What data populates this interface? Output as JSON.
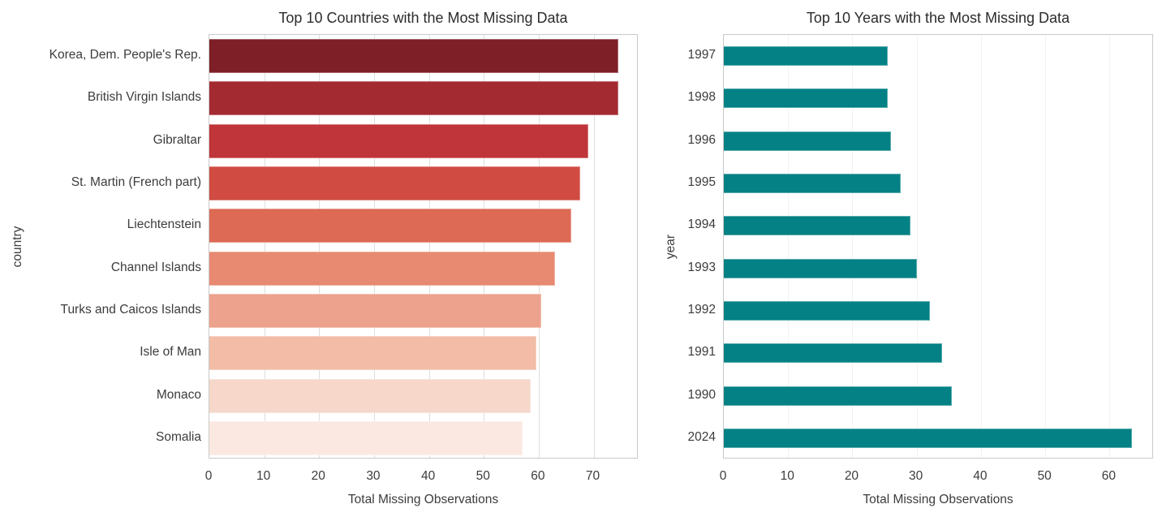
{
  "figure": {
    "background": "#ffffff",
    "text_color": "#3c3c3c",
    "title_color": "#2b2b2b"
  },
  "chart_data": [
    {
      "type": "bar",
      "orientation": "horizontal",
      "title": "Top 10 Countries with the Most Missing Data",
      "xlabel": "Total Missing Observations",
      "ylabel": "country",
      "categories": [
        "Korea, Dem. People's Rep.",
        "British Virgin Islands",
        "Gibraltar",
        "St. Martin (French part)",
        "Liechtenstein",
        "Channel Islands",
        "Turks and Caicos Islands",
        "Isle of Man",
        "Monaco",
        "Somalia"
      ],
      "values": [
        74.5,
        74.5,
        69,
        67.5,
        66,
        63,
        60.5,
        59.5,
        58.5,
        57
      ],
      "xlim": [
        0,
        78.2
      ],
      "xticks": [
        0,
        10,
        20,
        30,
        40,
        50,
        60,
        70
      ],
      "bar_colors": [
        "#7e1e26",
        "#a42a32",
        "#c03539",
        "#d04b42",
        "#dd6a54",
        "#e78a71",
        "#eca28c",
        "#f2bca7",
        "#f6d7c9",
        "#fbe9e1"
      ],
      "grid": true,
      "legend": false,
      "grid_color": "#dedede",
      "spine_color": "#c9c9c9"
    },
    {
      "type": "bar",
      "orientation": "horizontal",
      "title": "Top 10 Years with the Most Missing Data",
      "xlabel": "Total Missing Observations",
      "ylabel": "year",
      "categories": [
        "1997",
        "1998",
        "1996",
        "1995",
        "1994",
        "1993",
        "1992",
        "1991",
        "1990",
        "2024"
      ],
      "values": [
        25.5,
        25.5,
        26,
        27.5,
        29,
        30,
        32,
        34,
        35.5,
        63.5
      ],
      "xlim": [
        0,
        66.9
      ],
      "xticks": [
        0,
        10,
        20,
        30,
        40,
        50,
        60
      ],
      "bar_color": "#038184",
      "grid": true,
      "legend": false,
      "grid_color": "#f2f2f2",
      "spine_color": "#c9c9c9"
    }
  ]
}
